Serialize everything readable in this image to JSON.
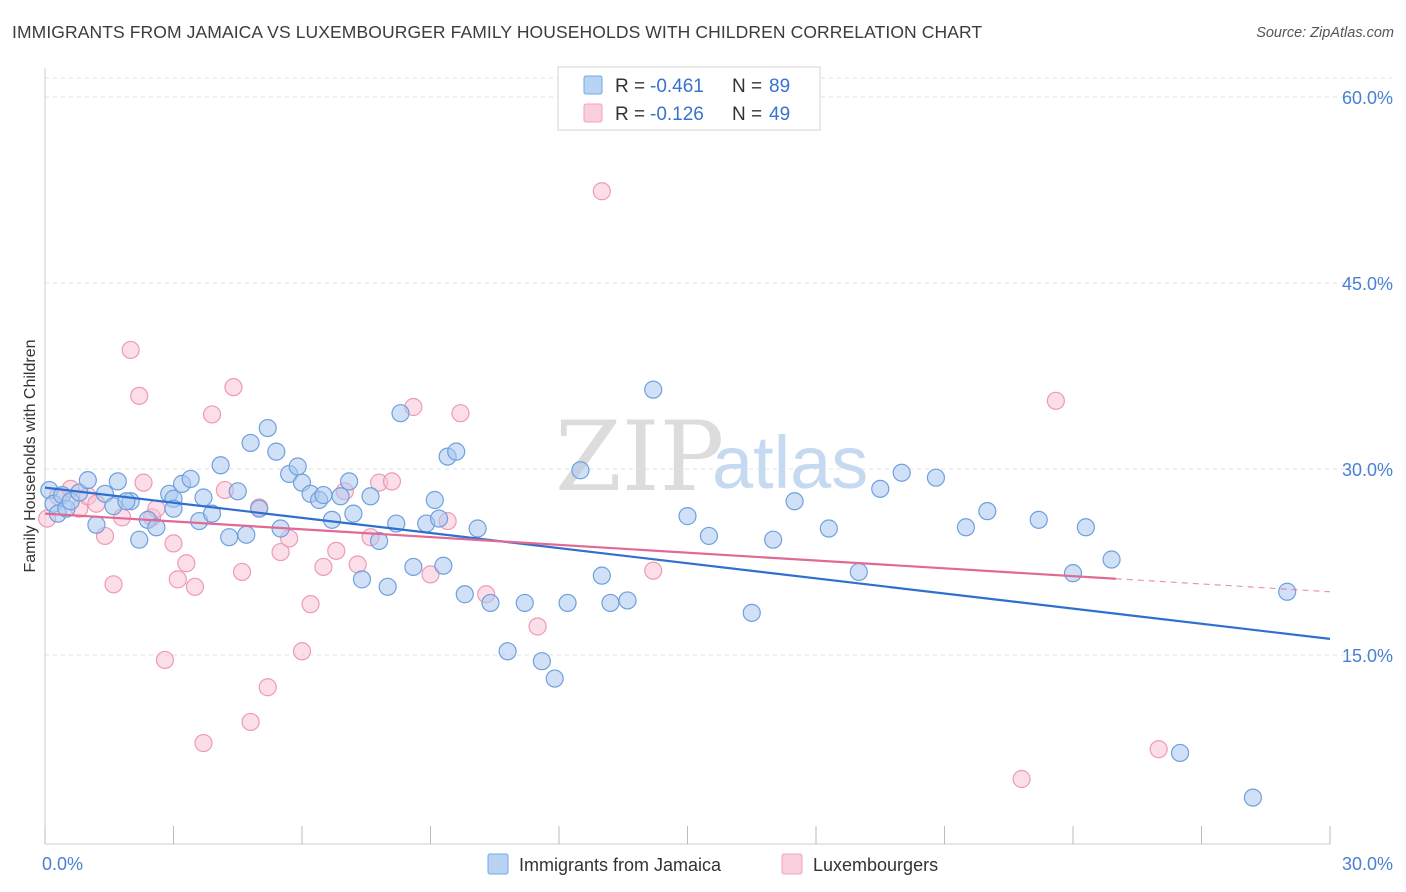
{
  "header": {
    "title": "IMMIGRANTS FROM JAMAICA VS LUXEMBOURGER FAMILY HOUSEHOLDS WITH CHILDREN CORRELATION CHART",
    "source": "Source: ZipAtlas.com"
  },
  "watermark": {
    "zip": "ZIP",
    "atlas": "atlas"
  },
  "legend": {
    "r_label": "R =",
    "n_label": "N =",
    "entries": [
      {
        "r": "-0.461",
        "n": "89",
        "color": "#6fa8e8"
      },
      {
        "r": "-0.126",
        "n": "49",
        "color": "#f4a0bc"
      }
    ]
  },
  "colors": {
    "series1_fill": "#a9c9f0",
    "series1_stroke": "#6fa0de",
    "series1_line": "#2f6fd0",
    "series2_fill": "#f7c3d3",
    "series2_stroke": "#ee9ab6",
    "series2_line": "#e06a93"
  },
  "chart_data": {
    "type": "scatter",
    "title": "IMMIGRANTS FROM JAMAICA VS LUXEMBOURGER FAMILY HOUSEHOLDS WITH CHILDREN CORRELATION CHART",
    "xlabel": "",
    "ylabel": "Family Households with Children",
    "xlim": [
      0,
      30
    ],
    "ylim": [
      0,
      60
    ],
    "x_tick_labels": [
      "0.0%",
      "30.0%"
    ],
    "y_ticks": [
      15,
      30,
      45,
      60
    ],
    "y_tick_labels": [
      "15.0%",
      "30.0%",
      "45.0%",
      "60.0%"
    ],
    "grid": true,
    "series": [
      {
        "name": "Immigrants from Jamaica",
        "r": -0.461,
        "n": 89,
        "trend": {
          "x": [
            0,
            30
          ],
          "y": [
            28.5,
            16.3
          ]
        },
        "points": [
          [
            0.1,
            28.3
          ],
          [
            0.2,
            27.2
          ],
          [
            0.3,
            26.4
          ],
          [
            0.4,
            27.9
          ],
          [
            0.5,
            26.8
          ],
          [
            0.6,
            27.4
          ],
          [
            0.8,
            28.1
          ],
          [
            1.0,
            29.1
          ],
          [
            1.2,
            25.5
          ],
          [
            1.4,
            28.0
          ],
          [
            1.6,
            27.0
          ],
          [
            1.7,
            29.0
          ],
          [
            2.0,
            27.4
          ],
          [
            2.2,
            24.3
          ],
          [
            2.4,
            25.9
          ],
          [
            2.6,
            25.3
          ],
          [
            2.9,
            28.0
          ],
          [
            3.0,
            27.6
          ],
          [
            3.2,
            28.8
          ],
          [
            3.4,
            29.2
          ],
          [
            3.6,
            25.8
          ],
          [
            3.7,
            27.7
          ],
          [
            3.9,
            26.4
          ],
          [
            4.1,
            30.3
          ],
          [
            4.3,
            24.5
          ],
          [
            4.5,
            28.2
          ],
          [
            4.7,
            24.7
          ],
          [
            4.8,
            32.1
          ],
          [
            5.0,
            26.8
          ],
          [
            5.2,
            33.3
          ],
          [
            5.4,
            31.4
          ],
          [
            5.5,
            25.2
          ],
          [
            5.7,
            29.6
          ],
          [
            5.9,
            30.2
          ],
          [
            6.0,
            28.9
          ],
          [
            6.2,
            28.0
          ],
          [
            6.4,
            27.5
          ],
          [
            6.7,
            25.9
          ],
          [
            6.9,
            27.8
          ],
          [
            7.1,
            29.0
          ],
          [
            7.2,
            26.4
          ],
          [
            7.4,
            21.1
          ],
          [
            7.6,
            27.8
          ],
          [
            7.8,
            24.2
          ],
          [
            8.0,
            20.5
          ],
          [
            8.2,
            25.6
          ],
          [
            8.3,
            34.5
          ],
          [
            8.6,
            22.1
          ],
          [
            8.9,
            25.6
          ],
          [
            9.1,
            27.5
          ],
          [
            9.2,
            26.0
          ],
          [
            9.4,
            31.0
          ],
          [
            9.6,
            31.4
          ],
          [
            9.8,
            19.9
          ],
          [
            10.1,
            25.2
          ],
          [
            10.4,
            19.2
          ],
          [
            10.8,
            15.3
          ],
          [
            11.2,
            19.2
          ],
          [
            11.6,
            14.5
          ],
          [
            11.9,
            13.1
          ],
          [
            12.2,
            19.2
          ],
          [
            12.5,
            29.9
          ],
          [
            13.0,
            21.4
          ],
          [
            13.2,
            19.2
          ],
          [
            13.6,
            19.4
          ],
          [
            14.2,
            36.4
          ],
          [
            15.0,
            26.2
          ],
          [
            15.5,
            24.6
          ],
          [
            16.5,
            18.4
          ],
          [
            17.0,
            24.3
          ],
          [
            17.5,
            27.4
          ],
          [
            18.3,
            25.2
          ],
          [
            19.0,
            21.7
          ],
          [
            19.5,
            28.4
          ],
          [
            20.0,
            29.7
          ],
          [
            20.8,
            29.3
          ],
          [
            21.5,
            25.3
          ],
          [
            22.0,
            26.6
          ],
          [
            23.2,
            25.9
          ],
          [
            24.0,
            21.6
          ],
          [
            24.3,
            25.3
          ],
          [
            24.9,
            22.7
          ],
          [
            26.5,
            7.1
          ],
          [
            28.2,
            3.5
          ],
          [
            29.0,
            20.1
          ],
          [
            1.9,
            27.4
          ],
          [
            3.0,
            26.8
          ],
          [
            6.5,
            27.9
          ],
          [
            9.3,
            22.2
          ]
        ]
      },
      {
        "name": "Luxembourgers",
        "r": -0.126,
        "n": 49,
        "trend": {
          "x": [
            0,
            30
          ],
          "y": [
            26.4,
            20.1
          ]
        },
        "trend_solid_to": 25,
        "points": [
          [
            0.05,
            26.0
          ],
          [
            0.3,
            27.8
          ],
          [
            0.6,
            28.4
          ],
          [
            0.8,
            26.8
          ],
          [
            1.0,
            27.8
          ],
          [
            1.2,
            27.2
          ],
          [
            1.4,
            24.6
          ],
          [
            1.6,
            20.7
          ],
          [
            1.8,
            26.1
          ],
          [
            2.0,
            39.6
          ],
          [
            2.2,
            35.9
          ],
          [
            2.5,
            26.1
          ],
          [
            2.6,
            26.8
          ],
          [
            2.8,
            14.6
          ],
          [
            3.0,
            24.0
          ],
          [
            3.1,
            21.1
          ],
          [
            3.3,
            22.4
          ],
          [
            3.5,
            20.5
          ],
          [
            3.7,
            7.9
          ],
          [
            3.9,
            34.4
          ],
          [
            4.2,
            28.3
          ],
          [
            4.4,
            36.6
          ],
          [
            4.6,
            21.7
          ],
          [
            4.8,
            9.6
          ],
          [
            5.0,
            26.9
          ],
          [
            5.2,
            12.4
          ],
          [
            5.5,
            23.3
          ],
          [
            5.7,
            24.4
          ],
          [
            6.0,
            15.3
          ],
          [
            6.2,
            19.1
          ],
          [
            6.5,
            22.1
          ],
          [
            6.8,
            23.4
          ],
          [
            7.0,
            28.2
          ],
          [
            7.3,
            22.3
          ],
          [
            7.6,
            24.5
          ],
          [
            7.8,
            28.9
          ],
          [
            8.1,
            29.0
          ],
          [
            8.6,
            35.0
          ],
          [
            9.0,
            21.5
          ],
          [
            9.4,
            25.8
          ],
          [
            9.7,
            34.5
          ],
          [
            10.3,
            19.9
          ],
          [
            11.5,
            17.3
          ],
          [
            13.0,
            52.4
          ],
          [
            14.2,
            21.8
          ],
          [
            22.8,
            5.0
          ],
          [
            23.6,
            35.5
          ],
          [
            26.0,
            7.4
          ],
          [
            2.3,
            28.9
          ]
        ]
      }
    ]
  }
}
